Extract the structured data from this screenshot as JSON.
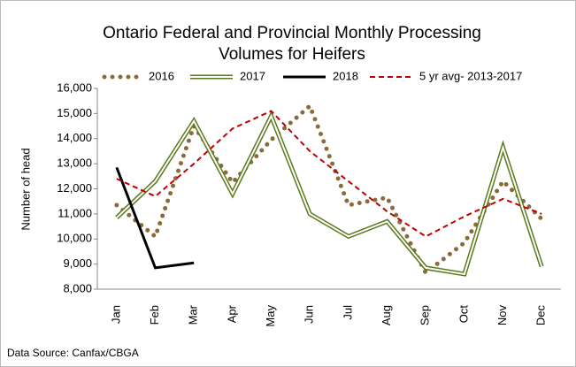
{
  "chart_data": {
    "type": "line",
    "title": [
      "Ontario Federal and Provincial Monthly Processing",
      "Volumes for Heifers"
    ],
    "y_label": "Number of head",
    "source": "Data Source: Canfax/CBGA",
    "categories": [
      "Jan",
      "Feb",
      "Mar",
      "Apr",
      "May",
      "Jun",
      "Jul",
      "Aug",
      "Sep",
      "Oct",
      "Nov",
      "Dec"
    ],
    "series": [
      {
        "name": "2016",
        "color": "#8b6a3a",
        "style": "dotted",
        "values": [
          11350,
          10100,
          14500,
          12250,
          13950,
          15300,
          11350,
          11650,
          8650,
          9850,
          12300,
          10800
        ]
      },
      {
        "name": "2017",
        "color": "#5b7a1c",
        "style": "double",
        "values": [
          10850,
          12300,
          14700,
          11800,
          14900,
          11000,
          10100,
          10700,
          8850,
          8600,
          13650,
          8900
        ]
      },
      {
        "name": "2018",
        "color": "#000000",
        "style": "solid",
        "values": [
          12850,
          8850,
          9050,
          null,
          null,
          null,
          null,
          null,
          null,
          null,
          null,
          null
        ]
      },
      {
        "name": "5 yr avg- 2013-2017",
        "color": "#c00000",
        "style": "dashed",
        "values": [
          12400,
          11700,
          13000,
          14400,
          15100,
          13500,
          12300,
          11100,
          10100,
          10900,
          11600,
          11000
        ]
      }
    ],
    "ylim": [
      8000,
      16000
    ],
    "yticks": [
      {
        "value": 8000,
        "label": "8,000"
      },
      {
        "value": 9000,
        "label": "9,000"
      },
      {
        "value": 10000,
        "label": "10,000"
      },
      {
        "value": 11000,
        "label": "11,000"
      },
      {
        "value": 12000,
        "label": "12,000"
      },
      {
        "value": 13000,
        "label": "13,000"
      },
      {
        "value": 14000,
        "label": "14,000"
      },
      {
        "value": 15000,
        "label": "15,000"
      },
      {
        "value": 16000,
        "label": "16,000"
      }
    ],
    "grid": false
  }
}
